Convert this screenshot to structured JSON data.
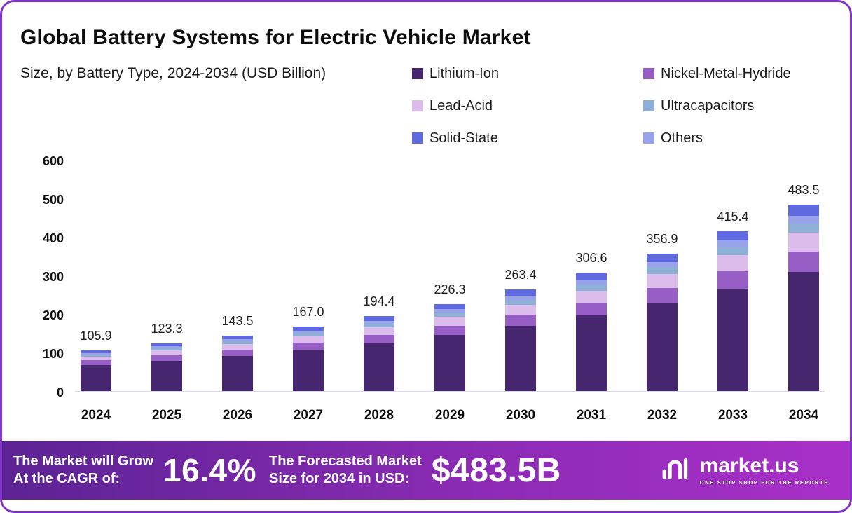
{
  "header": {
    "title": "Global Battery Systems for Electric Vehicle Market",
    "subtitle": "Size, by Battery Type, 2024-2034 (USD Billion)"
  },
  "chart_data": {
    "type": "bar",
    "stacked": true,
    "title": "Global Battery Systems for Electric Vehicle Market Size, by Battery Type, 2024-2034 (USD Billion)",
    "xlabel": "",
    "ylabel": "",
    "ylim": [
      0,
      600
    ],
    "y_ticks": [
      0,
      100,
      200,
      300,
      400,
      500,
      600
    ],
    "grid": false,
    "legend_position": "top-right",
    "categories": [
      "2024",
      "2025",
      "2026",
      "2027",
      "2028",
      "2029",
      "2030",
      "2031",
      "2032",
      "2033",
      "2034"
    ],
    "totals": [
      105.9,
      123.3,
      143.5,
      167.0,
      194.4,
      226.3,
      263.4,
      306.6,
      356.9,
      415.4,
      483.5
    ],
    "series": [
      {
        "name": "Lithium-Ion",
        "color": "#46266e",
        "values": [
          67.8,
          78.9,
          91.8,
          106.9,
          124.4,
          144.8,
          168.6,
          196.2,
          228.4,
          265.9,
          309.4
        ]
      },
      {
        "name": "Nickel-Metal-Hydride",
        "color": "#975fc6",
        "values": [
          11.6,
          13.6,
          15.8,
          18.4,
          21.4,
          24.9,
          29.0,
          33.7,
          39.3,
          45.7,
          53.2
        ]
      },
      {
        "name": "Lead-Acid",
        "color": "#dcbcea",
        "values": [
          10.6,
          12.3,
          14.4,
          16.7,
          19.4,
          22.6,
          26.3,
          30.7,
          35.7,
          41.5,
          48.4
        ]
      },
      {
        "name": "Ultracapacitors",
        "color": "#8fb0d6",
        "values": [
          5.3,
          6.2,
          7.2,
          8.4,
          9.7,
          11.3,
          13.2,
          15.3,
          17.8,
          20.8,
          24.2
        ]
      },
      {
        "name": "Solid-State",
        "color": "#5f6ae0",
        "values": [
          6.4,
          7.4,
          8.6,
          10.0,
          11.7,
          13.6,
          15.8,
          18.4,
          21.4,
          24.9,
          29.0
        ]
      },
      {
        "name": "Others",
        "color": "#98a3ec",
        "values": [
          4.2,
          4.9,
          5.7,
          6.7,
          7.8,
          9.1,
          10.5,
          12.3,
          14.3,
          16.6,
          19.3
        ]
      }
    ],
    "stack_order": [
      "Lithium-Ion",
      "Nickel-Metal-Hydride",
      "Lead-Acid",
      "Ultracapacitors",
      "Others",
      "Solid-State"
    ]
  },
  "footer": {
    "cagr_label_line1": "The Market will Grow",
    "cagr_label_line2": "At the CAGR of:",
    "cagr_value": "16.4%",
    "forecast_label_line1": "The Forecasted Market",
    "forecast_label_line2": "Size for 2034 in USD:",
    "forecast_value": "$483.5B",
    "brand": "market.us",
    "brand_tagline": "ONE STOP SHOP FOR THE REPORTS"
  }
}
